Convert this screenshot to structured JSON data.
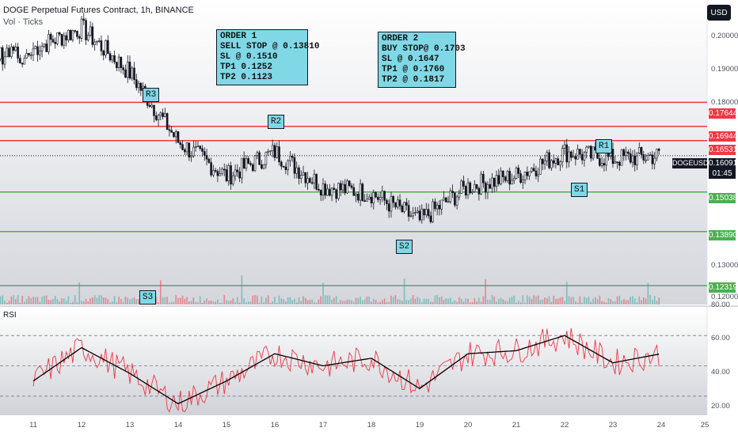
{
  "header": {
    "title": "DOGE Perpetual Futures Contract, 1h, BINANCE",
    "indicator": "Vol · Ticks",
    "currency_button": "USD"
  },
  "orders": {
    "order1": "ORDER 1\nSELL STOP @ 0.13810\nSL @ 0.1510\nTP1 0.1252\nTP2 0.1123",
    "order2": "ORDER 2\nBUY STOP@ 0.1703\nSL @ 0.1647\nTP1 @ 0.1760\nTP2 @ 0.1817"
  },
  "levels": [
    {
      "tag": "R3",
      "price": "0.17644",
      "kind": "resistance"
    },
    {
      "tag": "R2",
      "price": "0.16944",
      "kind": "resistance"
    },
    {
      "tag": "R1",
      "price": "0.16531",
      "kind": "resistance"
    },
    {
      "tag": "S1",
      "price": "0.15038",
      "kind": "support"
    },
    {
      "tag": "S2",
      "price": "0.13890",
      "kind": "support"
    },
    {
      "tag": "S3",
      "price": "0.12319",
      "kind": "support"
    }
  ],
  "current_price": {
    "symbol": "DOGEUSD.P",
    "price": "0.16091",
    "countdown": "01:45"
  },
  "price_axis": [
    "0.20000",
    "0.19000",
    "0.18000",
    "0.13000",
    "0.12000"
  ],
  "time_axis": [
    "11",
    "12",
    "13",
    "14",
    "15",
    "16",
    "17",
    "18",
    "19",
    "20",
    "21",
    "22",
    "23",
    "24",
    "25"
  ],
  "rsi": {
    "label": "RSI",
    "axis": [
      "80.00",
      "60.00",
      "40.00",
      "20.00"
    ]
  },
  "colors": {
    "resistance": "#f23645",
    "support": "#4caf50",
    "tag_bg": "#80d8e6",
    "rsi_line": "#f23645",
    "rsi_ma": "#000000",
    "candle": "#131722"
  },
  "chart_data": {
    "type": "line",
    "title": "DOGE Perpetual Futures Contract, 1h, BINANCE",
    "x": [
      "11",
      "12",
      "13",
      "14",
      "15",
      "16",
      "17",
      "18",
      "19",
      "20",
      "21",
      "22",
      "23",
      "24"
    ],
    "series": [
      {
        "name": "DOGEUSD.P",
        "values": [
          0.192,
          0.198,
          0.185,
          0.165,
          0.155,
          0.162,
          0.152,
          0.15,
          0.142,
          0.152,
          0.155,
          0.162,
          0.16,
          0.161
        ]
      },
      {
        "name": "RSI",
        "values": [
          40,
          62,
          45,
          25,
          40,
          58,
          50,
          55,
          35,
          58,
          60,
          70,
          52,
          58
        ]
      }
    ],
    "ylim": [
      0.12,
      0.205
    ]
  }
}
